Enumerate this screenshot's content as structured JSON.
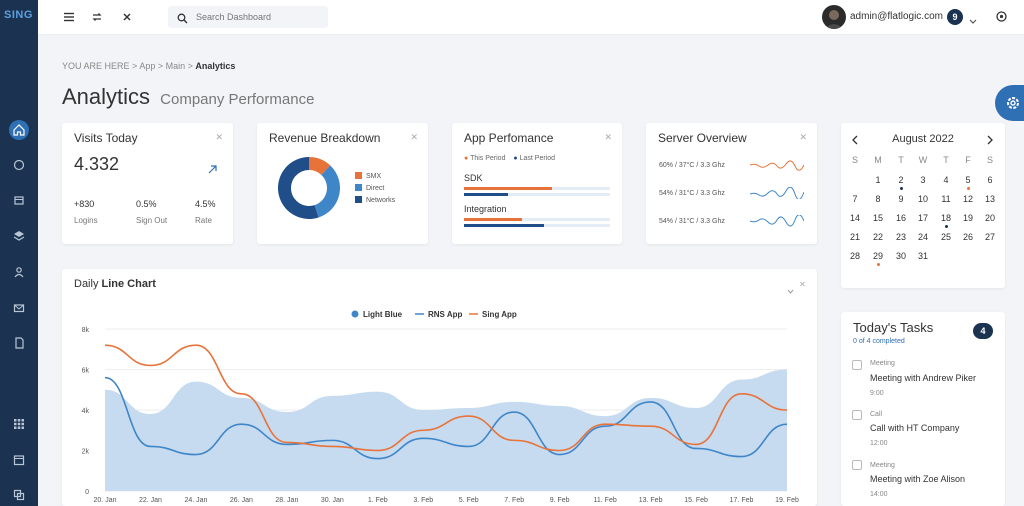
{
  "app": {
    "logo": "SING"
  },
  "topbar": {
    "search_placeholder": "Search Dashboard",
    "user_email": "admin@flatlogic.com",
    "notifications_count": "9"
  },
  "breadcrumb": {
    "prefix": "YOU ARE HERE",
    "items": [
      "App",
      "Main"
    ],
    "current": "Analytics"
  },
  "page": {
    "title": "Analytics",
    "subtitle": "Company Performance"
  },
  "visits": {
    "title": "Visits Today",
    "value": "4.332",
    "stats": [
      {
        "value": "+830",
        "label": "Logins"
      },
      {
        "value": "0.5%",
        "label": "Sign Out"
      },
      {
        "value": "4.5%",
        "label": "Rate"
      }
    ]
  },
  "revenue": {
    "title": "Revenue Breakdown",
    "legend": [
      {
        "label": "SMX",
        "color": "#e8733a"
      },
      {
        "label": "Direct",
        "color": "#3f86c8"
      },
      {
        "label": "Networks",
        "color": "#1f4e88"
      }
    ],
    "slices": [
      12,
      33,
      55
    ]
  },
  "performance": {
    "title": "App Perfomance",
    "legend": [
      "This Period",
      "Last Period"
    ],
    "metrics": [
      {
        "label": "SDK",
        "this": 0.6,
        "last": 0.3
      },
      {
        "label": "Integration",
        "this": 0.4,
        "last": 0.55
      }
    ]
  },
  "server": {
    "title": "Server Overview",
    "rows": [
      {
        "text": "60% / 37°C / 3.3 Ghz",
        "color": "#e8733a"
      },
      {
        "text": "54% / 31°C / 3.3 Ghz",
        "color": "#3f86c8"
      },
      {
        "text": "54% / 31°C / 3.3 Ghz",
        "color": "#3f86c8"
      }
    ]
  },
  "calendar": {
    "month": "August 2022",
    "weekdays": [
      "S",
      "M",
      "T",
      "W",
      "T",
      "F",
      "S"
    ],
    "weeks": [
      [
        "",
        "1",
        "2",
        "3",
        "4",
        "5",
        "6"
      ],
      [
        "7",
        "8",
        "9",
        "10",
        "11",
        "12",
        "13"
      ],
      [
        "14",
        "15",
        "16",
        "17",
        "18",
        "19",
        "20"
      ],
      [
        "21",
        "22",
        "23",
        "24",
        "25",
        "26",
        "27"
      ],
      [
        "28",
        "29",
        "30",
        "31",
        "",
        "",
        ""
      ]
    ]
  },
  "tasks": {
    "title": "Today's Tasks",
    "subtitle": "0 of 4 completed",
    "count": "4",
    "items": [
      {
        "category": "Meeting",
        "title": "Meeting with Andrew Piker",
        "time": "9:00"
      },
      {
        "category": "Call",
        "title": "Call with HT Company",
        "time": "12:00"
      },
      {
        "category": "Meeting",
        "title": "Meeting with Zoe Alison",
        "time": "14:00"
      }
    ]
  },
  "chart": {
    "title_prefix": "Daily",
    "title_bold": "Line Chart"
  },
  "chart_data": {
    "type": "line",
    "x": [
      "20. Jan",
      "22. Jan",
      "24. Jan",
      "26. Jan",
      "28. Jan",
      "30. Jan",
      "1. Feb",
      "3. Feb",
      "5. Feb",
      "7. Feb",
      "9. Feb",
      "11. Feb",
      "13. Feb",
      "15. Feb",
      "17. Feb",
      "19. Feb"
    ],
    "ylim": [
      0,
      8000
    ],
    "yticks": [
      "0",
      "2k",
      "4k",
      "6k",
      "8k"
    ],
    "series": [
      {
        "name": "Light Blue",
        "color": "#c7dbf0",
        "kind": "area",
        "values": [
          5000,
          3800,
          5400,
          4600,
          3900,
          4700,
          4900,
          4000,
          4100,
          4400,
          4200,
          3700,
          4600,
          4100,
          5500,
          6000
        ]
      },
      {
        "name": "RNS App",
        "color": "#3f86c8",
        "kind": "line",
        "values": [
          5600,
          2200,
          1800,
          3300,
          2300,
          2500,
          1600,
          2600,
          2200,
          3900,
          1800,
          3200,
          4400,
          2100,
          1700,
          3300
        ]
      },
      {
        "name": "Sing App",
        "color": "#e8733a",
        "kind": "line",
        "values": [
          7200,
          6200,
          7200,
          4800,
          2400,
          2200,
          2000,
          3000,
          3700,
          2500,
          2000,
          3300,
          3200,
          2300,
          4800,
          4000
        ]
      }
    ]
  }
}
